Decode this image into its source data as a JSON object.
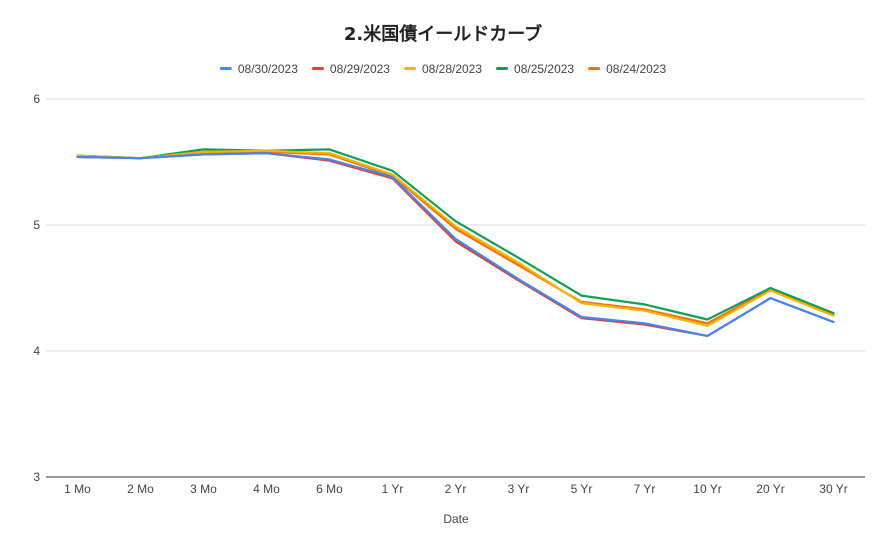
{
  "chart_data": {
    "type": "line",
    "title": "2.米国債イールドカーブ",
    "xlabel": "Date",
    "ylabel": "",
    "ylim": [
      3,
      6
    ],
    "yticks": [
      3,
      4,
      5,
      6
    ],
    "grid": true,
    "legend_position": "top",
    "categories": [
      "1 Mo",
      "2 Mo",
      "3 Mo",
      "4 Mo",
      "6 Mo",
      "1 Yr",
      "2 Yr",
      "3 Yr",
      "5 Yr",
      "7 Yr",
      "10 Yr",
      "20 Yr",
      "30 Yr"
    ],
    "series": [
      {
        "name": "08/30/2023",
        "color": "#4285f4",
        "values": [
          5.54,
          5.53,
          5.56,
          5.57,
          5.52,
          5.38,
          4.89,
          4.57,
          4.27,
          4.22,
          4.12,
          4.42,
          4.23
        ]
      },
      {
        "name": "08/29/2023",
        "color": "#db4437",
        "values": [
          5.54,
          5.53,
          5.56,
          5.57,
          5.51,
          5.37,
          4.87,
          4.56,
          4.26,
          4.21,
          4.12,
          4.42,
          4.23
        ]
      },
      {
        "name": "08/28/2023",
        "color": "#f4b400",
        "values": [
          5.55,
          5.53,
          5.58,
          5.59,
          5.57,
          5.4,
          4.99,
          4.7,
          4.38,
          4.32,
          4.2,
          4.48,
          4.28
        ]
      },
      {
        "name": "08/25/2023",
        "color": "#0f9d58",
        "values": [
          5.55,
          5.53,
          5.6,
          5.59,
          5.6,
          5.43,
          5.03,
          4.74,
          4.44,
          4.37,
          4.25,
          4.5,
          4.3
        ]
      },
      {
        "name": "08/24/2023",
        "color": "#ff6d01",
        "values": [
          5.55,
          5.53,
          5.58,
          5.58,
          5.56,
          5.39,
          4.97,
          4.68,
          4.39,
          4.33,
          4.22,
          4.49,
          4.29
        ]
      }
    ]
  }
}
